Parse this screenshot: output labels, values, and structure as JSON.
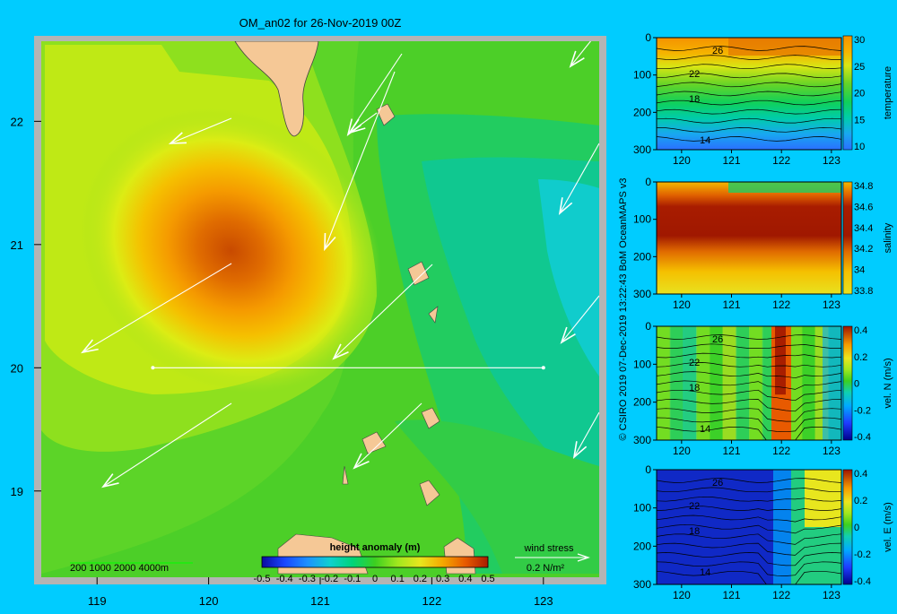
{
  "colors": {
    "background": "#00ccff",
    "land": "#f5c896",
    "frame": "#b4b4b4",
    "vector": "#ffffff",
    "contour": "#000000"
  },
  "main_map": {
    "title": "OM_an02 for 26-Nov-2019 00Z",
    "x_ticks": [
      "119",
      "120",
      "121",
      "122",
      "123"
    ],
    "y_ticks": [
      "22",
      "21",
      "20",
      "19"
    ],
    "depth_legend": "200  1000  2000  4000m",
    "colorbar_title": "height anomaly  (m)",
    "colorbar_ticks": [
      "-0.5",
      "-0.4",
      "-0.3",
      "-0.2",
      "-0.1",
      "0",
      "0.1",
      "0.2",
      "0.3",
      "0.4",
      "0.5"
    ],
    "wind_legend_title": "wind stress",
    "wind_legend_value": "0.2 N/m²"
  },
  "credit": "© CSIRO 2019    07-Dec-2019 13:22:43 BoM OceanMAPS v3",
  "chart_data": [
    {
      "type": "heatmap",
      "title": "OM_an02 for 26-Nov-2019 00Z",
      "variable": "height anomaly  (m)",
      "x_ticks": [
        119,
        120,
        121,
        122,
        123
      ],
      "y_ticks": [
        19,
        20,
        21,
        22
      ],
      "xlim": [
        118.5,
        123.5
      ],
      "ylim": [
        18.3,
        22.65
      ],
      "clim": [
        -0.5,
        0.5
      ],
      "eddy_center": [
        120.2,
        20.95
      ],
      "eddy_peak": 0.4,
      "section_line": {
        "lat": 20,
        "lon": [
          119.5,
          123
        ]
      }
    },
    {
      "type": "heatmap",
      "label": "temperature",
      "x_ticks": [
        120,
        121,
        122,
        123
      ],
      "y_ticks": [
        0,
        100,
        200,
        300
      ],
      "ylim": [
        300,
        0
      ],
      "clim": [
        10,
        30
      ],
      "colorbar_ticks": [
        "30",
        "25",
        "20",
        "15",
        "10"
      ],
      "contour_labels": [
        "26",
        "22",
        "18",
        "14"
      ]
    },
    {
      "type": "heatmap",
      "label": "salinity",
      "x_ticks": [
        120,
        121,
        122,
        123
      ],
      "y_ticks": [
        0,
        100,
        200,
        300
      ],
      "ylim": [
        300,
        0
      ],
      "clim": [
        33.8,
        34.9
      ],
      "colorbar_ticks": [
        "34.8",
        "34.6",
        "34.4",
        "34.2",
        "34",
        "33.8"
      ]
    },
    {
      "type": "heatmap",
      "label": "vel. N  (m/s)",
      "x_ticks": [
        120,
        121,
        122,
        123
      ],
      "y_ticks": [
        0,
        100,
        200,
        300
      ],
      "ylim": [
        300,
        0
      ],
      "clim": [
        -0.4,
        0.5
      ],
      "colorbar_ticks": [
        "0.4",
        "0.2",
        "0",
        "-0.2",
        "-0.4"
      ],
      "contour_labels": [
        "26",
        "22",
        "18",
        "14"
      ]
    },
    {
      "type": "heatmap",
      "label": "vel. E  (m/s)",
      "x_ticks": [
        120,
        121,
        122,
        123
      ],
      "y_ticks": [
        0,
        100,
        200,
        300
      ],
      "ylim": [
        300,
        0
      ],
      "clim": [
        -0.4,
        0.5
      ],
      "colorbar_ticks": [
        "0.4",
        "0.2",
        "0",
        "-0.2",
        "-0.4"
      ],
      "contour_labels": [
        "26",
        "22",
        "18",
        "14"
      ]
    }
  ]
}
